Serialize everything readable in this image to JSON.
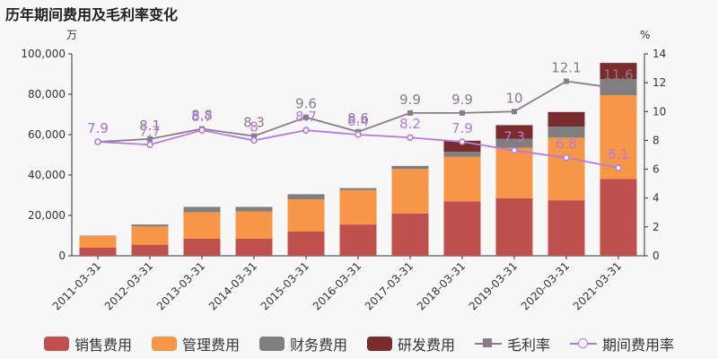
{
  "title": "历年期间费用及毛利率变化",
  "units": {
    "left": "万",
    "right": "%"
  },
  "legend": [
    {
      "label": "销售费用",
      "color": "#c0504d",
      "kind": "bar"
    },
    {
      "label": "管理费用",
      "color": "#f79646",
      "kind": "bar"
    },
    {
      "label": "财务费用",
      "color": "#7f7f7f",
      "kind": "bar"
    },
    {
      "label": "研发费用",
      "color": "#7a2b2b",
      "kind": "bar"
    },
    {
      "label": "毛利率",
      "color": "#8c7b8a",
      "kind": "line-square"
    },
    {
      "label": "期间费用率",
      "color": "#b37be0",
      "kind": "line-circle"
    }
  ],
  "chart_data": {
    "type": "bar",
    "stacked": true,
    "categories": [
      "2011-03-31",
      "2012-03-31",
      "2013-03-31",
      "2014-03-31",
      "2015-03-31",
      "2016-03-31",
      "2017-03-31",
      "2018-03-31",
      "2019-03-31",
      "2020-03-31",
      "2021-03-31"
    ],
    "series": [
      {
        "name": "销售费用",
        "color": "#c0504d",
        "values": [
          4000,
          5500,
          8500,
          8500,
          12000,
          15500,
          21000,
          27000,
          28500,
          27500,
          38000
        ]
      },
      {
        "name": "管理费用",
        "color": "#f79646",
        "values": [
          5800,
          9000,
          13000,
          13500,
          16000,
          17000,
          22000,
          22000,
          25000,
          31000,
          41500
        ]
      },
      {
        "name": "财务费用",
        "color": "#7f7f7f",
        "values": [
          200,
          1000,
          2700,
          2200,
          2500,
          1000,
          1500,
          2500,
          4500,
          5500,
          8000
        ]
      },
      {
        "name": "研发费用",
        "color": "#7a2b2b",
        "values": [
          0,
          0,
          0,
          0,
          0,
          0,
          0,
          5500,
          6700,
          7200,
          8000
        ]
      }
    ],
    "lines": [
      {
        "name": "毛利率",
        "color": "#8c7b8a",
        "marker": "square",
        "axis": "right",
        "values": [
          7.9,
          8.1,
          8.8,
          8.3,
          9.6,
          8.6,
          9.9,
          9.9,
          10,
          12.1,
          11.6
        ],
        "labels": [
          "7.9",
          "8.1",
          "8.8",
          "8.3",
          "9.6",
          "8.6",
          "9.9",
          "9.9",
          "10",
          "12.1",
          "11.6"
        ]
      },
      {
        "name": "期间费用率",
        "color": "#b37be0",
        "marker": "circle",
        "axis": "right",
        "values": [
          7.9,
          7.7,
          8.7,
          8.0,
          8.7,
          8.4,
          8.2,
          7.9,
          7.3,
          6.8,
          6.1
        ],
        "labels": [
          "7.9",
          "7.7",
          "8.7",
          "8",
          "8.7",
          "8.4",
          "8.2",
          "7.9",
          "7.3",
          "6.8",
          "6.1"
        ]
      }
    ],
    "yLeft": {
      "min": 0,
      "max": 100000,
      "ticks": [
        0,
        20000,
        40000,
        60000,
        80000,
        100000
      ],
      "tickLabels": [
        "0",
        "20,000",
        "40,000",
        "60,000",
        "80,000",
        "100,000"
      ]
    },
    "yRight": {
      "min": 0,
      "max": 14,
      "ticks": [
        0,
        2,
        4,
        6,
        8,
        10,
        12,
        14
      ],
      "tickLabels": [
        "0",
        "2",
        "4",
        "6",
        "8",
        "10",
        "12",
        "14"
      ]
    }
  }
}
